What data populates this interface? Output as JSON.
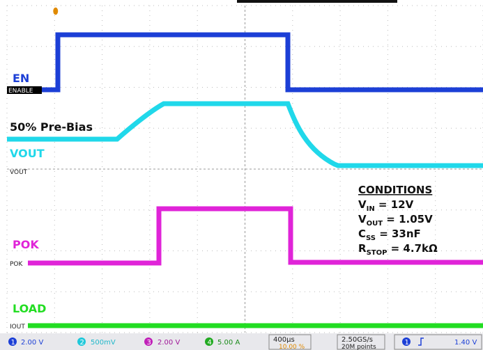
{
  "channels": [
    {
      "name": "EN",
      "ref": "ENABLE"
    },
    {
      "name": "VOUT",
      "ref": "VOUT",
      "note": "50% Pre-Bias"
    },
    {
      "name": "POK",
      "ref": "POK"
    },
    {
      "name": "LOAD",
      "ref": "IOUT"
    }
  ],
  "conditions": {
    "title": "CONDITIONS",
    "lines": [
      {
        "base": "V",
        "sub": "IN",
        "value": " = 12V"
      },
      {
        "base": "V",
        "sub": "OUT",
        "value": " = 1.05V"
      },
      {
        "base": "C",
        "sub": "SS",
        "value": " = 33nF"
      },
      {
        "base": "R",
        "sub": "STOP",
        "value": " = 4.7kΩ"
      }
    ]
  },
  "status": {
    "ch1": {
      "num": "1",
      "scale": "2.00 V"
    },
    "ch2": {
      "num": "2",
      "scale": "500mV"
    },
    "ch3": {
      "num": "3",
      "scale": "2.00 V"
    },
    "ch4": {
      "num": "4",
      "scale": "5.00 A"
    },
    "timebase": "400µs",
    "trigger_pos": "10.00 %",
    "sample_rate": "2.50GS/s",
    "record": "20M points",
    "trigger": {
      "source": "1",
      "level": "1.40 V"
    }
  }
}
